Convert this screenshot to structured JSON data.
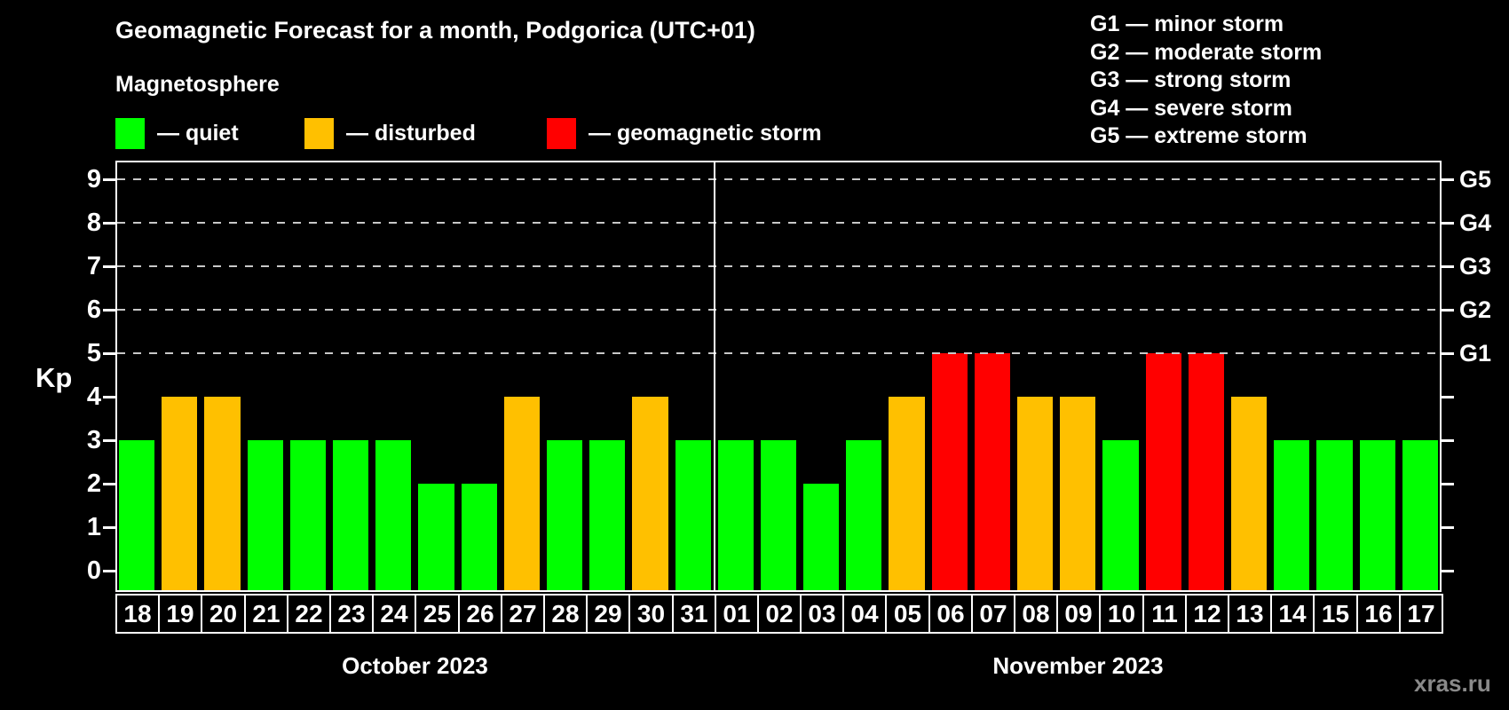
{
  "title": "Geomagnetic Forecast for a month, Podgorica (UTC+01)",
  "subtitle": "Magnetosphere",
  "watermark": "xras.ru",
  "colors": {
    "quiet": "#00ff00",
    "disturbed": "#ffc000",
    "storm": "#ff0000"
  },
  "legend": {
    "items": [
      {
        "label": "— quiet",
        "status": "quiet"
      },
      {
        "label": "— disturbed",
        "status": "disturbed"
      },
      {
        "label": "— geomagnetic storm",
        "status": "storm"
      }
    ]
  },
  "g_scale": {
    "items": [
      "G1 — minor storm",
      "G2 — moderate storm",
      "G3 — strong storm",
      "G4 — severe storm",
      "G5 — extreme storm"
    ]
  },
  "chart_data": {
    "type": "bar",
    "title": "Geomagnetic Forecast for a month, Podgorica (UTC+01)",
    "xlabel": "",
    "ylabel": "Kp",
    "ylim": [
      0,
      9
    ],
    "grid_levels": [
      5,
      6,
      7,
      8,
      9
    ],
    "right_axis": [
      {
        "kp": 5,
        "label": "G1"
      },
      {
        "kp": 6,
        "label": "G2"
      },
      {
        "kp": 7,
        "label": "G3"
      },
      {
        "kp": 8,
        "label": "G4"
      },
      {
        "kp": 9,
        "label": "G5"
      }
    ],
    "series": [
      {
        "month": "October 2023",
        "points": [
          {
            "day": "18",
            "kp": 3,
            "status": "quiet"
          },
          {
            "day": "19",
            "kp": 4,
            "status": "disturbed"
          },
          {
            "day": "20",
            "kp": 4,
            "status": "disturbed"
          },
          {
            "day": "21",
            "kp": 3,
            "status": "quiet"
          },
          {
            "day": "22",
            "kp": 3,
            "status": "quiet"
          },
          {
            "day": "23",
            "kp": 3,
            "status": "quiet"
          },
          {
            "day": "24",
            "kp": 3,
            "status": "quiet"
          },
          {
            "day": "25",
            "kp": 2,
            "status": "quiet"
          },
          {
            "day": "26",
            "kp": 2,
            "status": "quiet"
          },
          {
            "day": "27",
            "kp": 4,
            "status": "disturbed"
          },
          {
            "day": "28",
            "kp": 3,
            "status": "quiet"
          },
          {
            "day": "29",
            "kp": 3,
            "status": "quiet"
          },
          {
            "day": "30",
            "kp": 4,
            "status": "disturbed"
          },
          {
            "day": "31",
            "kp": 3,
            "status": "quiet"
          }
        ]
      },
      {
        "month": "November 2023",
        "points": [
          {
            "day": "01",
            "kp": 3,
            "status": "quiet"
          },
          {
            "day": "02",
            "kp": 3,
            "status": "quiet"
          },
          {
            "day": "03",
            "kp": 2,
            "status": "quiet"
          },
          {
            "day": "04",
            "kp": 3,
            "status": "quiet"
          },
          {
            "day": "05",
            "kp": 4,
            "status": "disturbed"
          },
          {
            "day": "06",
            "kp": 5,
            "status": "storm"
          },
          {
            "day": "07",
            "kp": 5,
            "status": "storm"
          },
          {
            "day": "08",
            "kp": 4,
            "status": "disturbed"
          },
          {
            "day": "09",
            "kp": 4,
            "status": "disturbed"
          },
          {
            "day": "10",
            "kp": 3,
            "status": "quiet"
          },
          {
            "day": "11",
            "kp": 5,
            "status": "storm"
          },
          {
            "day": "12",
            "kp": 5,
            "status": "storm"
          },
          {
            "day": "13",
            "kp": 4,
            "status": "disturbed"
          },
          {
            "day": "14",
            "kp": 3,
            "status": "quiet"
          },
          {
            "day": "15",
            "kp": 3,
            "status": "quiet"
          },
          {
            "day": "16",
            "kp": 3,
            "status": "quiet"
          },
          {
            "day": "17",
            "kp": 3,
            "status": "quiet"
          }
        ]
      }
    ]
  }
}
